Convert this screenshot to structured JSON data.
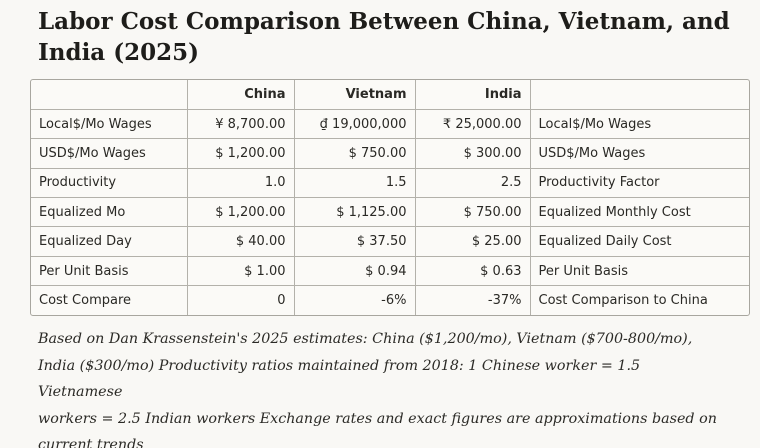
{
  "title": "Labor Cost Comparison Between China, Vietnam, and India (2025)",
  "table": {
    "headers": [
      "",
      "China",
      "Vietnam",
      "India",
      ""
    ],
    "rows": [
      [
        "Local$/Mo Wages",
        "¥ 8,700.00",
        "₫ 19,000,000",
        "₹ 25,000.00",
        "Local$/Mo Wages"
      ],
      [
        "USD$/Mo Wages",
        "$ 1,200.00",
        "$ 750.00",
        "$ 300.00",
        "USD$/Mo Wages"
      ],
      [
        "Productivity",
        "1.0",
        "1.5",
        "2.5",
        "Productivity Factor"
      ],
      [
        "Equalized Mo",
        "$ 1,200.00",
        "$ 1,125.00",
        "$ 750.00",
        "Equalized Monthly Cost"
      ],
      [
        "Equalized Day",
        "$ 40.00",
        "$ 37.50",
        "$ 25.00",
        "Equalized Daily Cost"
      ],
      [
        "Per Unit Basis",
        "$ 1.00",
        "$ 0.94",
        "$ 0.63",
        "Per Unit Basis"
      ],
      [
        "Cost Compare",
        "0",
        "-6%",
        "-37%",
        "Cost Comparison to China"
      ]
    ]
  },
  "note": {
    "lines": [
      "Based on Dan Krassenstein's 2025 estimates: China ($1,200/mo), Vietnam ($700-800/mo),",
      "India ($300/mo) Productivity ratios maintained from 2018: 1 Chinese worker = 1.5 Vietnamese",
      "workers = 2.5 Indian workers Exchange rates and exact figures are approximations based on",
      "current trends"
    ]
  }
}
